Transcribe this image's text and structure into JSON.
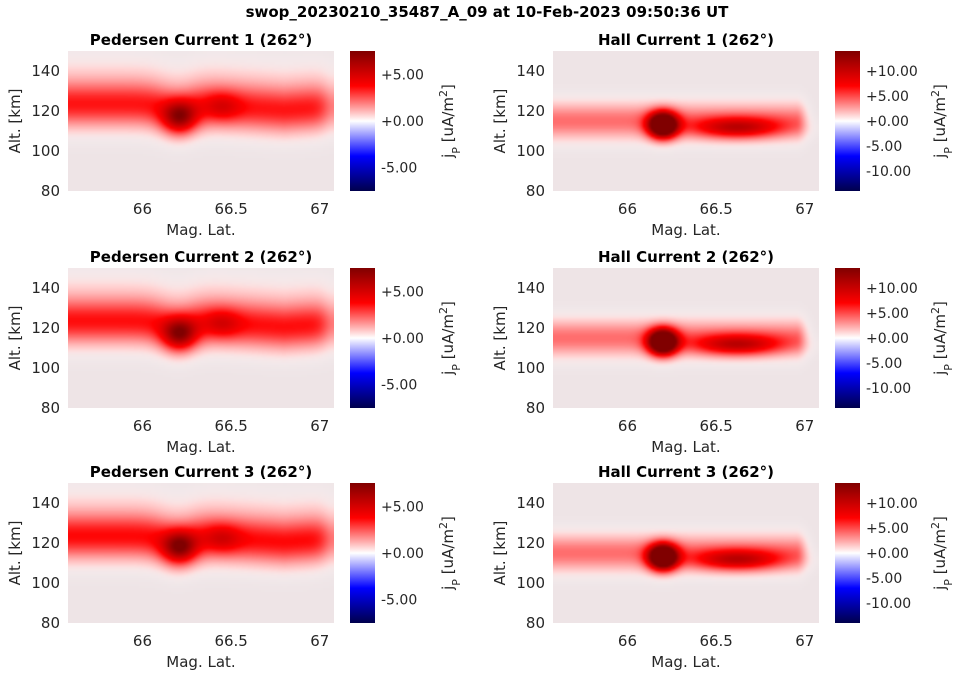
{
  "figure": {
    "title": "swop_20230210_35487_A_09 at 10-Feb-2023 09:50:36 UT"
  },
  "chart_data": [
    {
      "type": "heatmap",
      "id": "ped1",
      "title": "Pedersen Current 1 (262°)",
      "xlabel": "Mag. Lat.",
      "ylabel": "Alt. [km]",
      "xlim": [
        65.58,
        67.08
      ],
      "ylim": [
        80,
        150
      ],
      "xticks": [
        66,
        66.5,
        67
      ],
      "xticklabels": [
        "66",
        "66.5",
        "67"
      ],
      "yticks": [
        80,
        100,
        120,
        140
      ],
      "yticklabels": [
        "80",
        "100",
        "120",
        "140"
      ],
      "colorbar": {
        "label": "j_P [uA/m^2]",
        "label_main": "j",
        "label_sub": "P",
        "label_rest": " [uA/m",
        "label_sup": "2",
        "label_close": "]",
        "range": [
          -7.5,
          7.5
        ],
        "ticks": [
          5,
          0,
          -5
        ],
        "ticklabels": [
          "+5.00",
          "+0.00",
          "-5.00"
        ],
        "colormap": "seismic"
      },
      "field": {
        "kind": "pedersen",
        "peak": 7.5,
        "band_value": 3.4,
        "band_altitude_km": 123,
        "band_width_km": 7.5,
        "core_lat": 66.21,
        "core_alt_km": 117,
        "core_value": 4.5
      }
    },
    {
      "type": "heatmap",
      "id": "hall1",
      "title": "Hall Current 1 (262°)",
      "xlabel": "Mag. Lat.",
      "ylabel": "Alt. [km]",
      "xlim": [
        65.58,
        67.08
      ],
      "ylim": [
        80,
        150
      ],
      "xticks": [
        66,
        66.5,
        67
      ],
      "xticklabels": [
        "66",
        "66.5",
        "67"
      ],
      "yticks": [
        80,
        100,
        120,
        140
      ],
      "yticklabels": [
        "80",
        "100",
        "120",
        "140"
      ],
      "colorbar": {
        "label": "j_P [uA/m^2]",
        "label_main": "j",
        "label_sub": "P",
        "label_rest": " [uA/m",
        "label_sup": "2",
        "label_close": "]",
        "range": [
          -14,
          14
        ],
        "ticks": [
          10,
          5,
          0,
          -5,
          -10
        ],
        "ticklabels": [
          "+10.00",
          "+5.00",
          "+0.00",
          "-5.00",
          "-10.00"
        ],
        "colormap": "seismic"
      },
      "field": {
        "kind": "hall",
        "peak": 14,
        "band_value": 4.0,
        "band_altitude_km": 115,
        "band_width_km": 6,
        "core_lat": 66.2,
        "core_alt_km": 113,
        "core_value": 22
      }
    },
    {
      "type": "heatmap",
      "id": "ped2",
      "title": "Pedersen Current 2 (262°)",
      "xlabel": "Mag. Lat.",
      "ylabel": "Alt. [km]",
      "xlim": [
        65.58,
        67.08
      ],
      "ylim": [
        80,
        150
      ],
      "xticks": [
        66,
        66.5,
        67
      ],
      "xticklabels": [
        "66",
        "66.5",
        "67"
      ],
      "yticks": [
        80,
        100,
        120,
        140
      ],
      "yticklabels": [
        "80",
        "100",
        "120",
        "140"
      ],
      "colorbar": {
        "label": "j_P [uA/m^2]",
        "label_main": "j",
        "label_sub": "P",
        "label_rest": " [uA/m",
        "label_sup": "2",
        "label_close": "]",
        "range": [
          -7.5,
          7.5
        ],
        "ticks": [
          5,
          0,
          -5
        ],
        "ticklabels": [
          "+5.00",
          "+0.00",
          "-5.00"
        ],
        "colormap": "seismic"
      },
      "field": {
        "kind": "pedersen",
        "peak": 7.5,
        "band_value": 3.5,
        "band_altitude_km": 123,
        "band_width_km": 7.5,
        "core_lat": 66.21,
        "core_alt_km": 117,
        "core_value": 4.6
      }
    },
    {
      "type": "heatmap",
      "id": "hall2",
      "title": "Hall Current 2 (262°)",
      "xlabel": "Mag. Lat.",
      "ylabel": "Alt. [km]",
      "xlim": [
        65.58,
        67.08
      ],
      "ylim": [
        80,
        150
      ],
      "xticks": [
        66,
        66.5,
        67
      ],
      "xticklabels": [
        "66",
        "66.5",
        "67"
      ],
      "yticks": [
        80,
        100,
        120,
        140
      ],
      "yticklabels": [
        "80",
        "100",
        "120",
        "140"
      ],
      "colorbar": {
        "label": "j_P [uA/m^2]",
        "label_main": "j",
        "label_sub": "P",
        "label_rest": " [uA/m",
        "label_sup": "2",
        "label_close": "]",
        "range": [
          -14,
          14
        ],
        "ticks": [
          10,
          5,
          0,
          -5,
          -10
        ],
        "ticklabels": [
          "+10.00",
          "+5.00",
          "+0.00",
          "-5.00",
          "-10.00"
        ],
        "colormap": "seismic"
      },
      "field": {
        "kind": "hall",
        "peak": 14,
        "band_value": 4.0,
        "band_altitude_km": 115,
        "band_width_km": 6,
        "core_lat": 66.2,
        "core_alt_km": 113,
        "core_value": 22
      }
    },
    {
      "type": "heatmap",
      "id": "ped3",
      "title": "Pedersen Current 3 (262°)",
      "xlabel": "Mag. Lat.",
      "ylabel": "Alt. [km]",
      "xlim": [
        65.58,
        67.08
      ],
      "ylim": [
        80,
        150
      ],
      "xticks": [
        66,
        66.5,
        67
      ],
      "xticklabels": [
        "66",
        "66.5",
        "67"
      ],
      "yticks": [
        80,
        100,
        120,
        140
      ],
      "yticklabels": [
        "80",
        "100",
        "120",
        "140"
      ],
      "colorbar": {
        "label": "j_P [uA/m^2]",
        "label_main": "j",
        "label_sub": "P",
        "label_rest": " [uA/m",
        "label_sup": "2",
        "label_close": "]",
        "range": [
          -7.5,
          7.5
        ],
        "ticks": [
          5,
          0,
          -5
        ],
        "ticklabels": [
          "+5.00",
          "+0.00",
          "-5.00"
        ],
        "colormap": "seismic"
      },
      "field": {
        "kind": "pedersen",
        "peak": 7.5,
        "band_value": 3.6,
        "band_altitude_km": 123,
        "band_width_km": 7.5,
        "core_lat": 66.21,
        "core_alt_km": 118,
        "core_value": 4.6
      }
    },
    {
      "type": "heatmap",
      "id": "hall3",
      "title": "Hall Current 3 (262°)",
      "xlabel": "Mag. Lat.",
      "ylabel": "Alt. [km]",
      "xlim": [
        65.58,
        67.08
      ],
      "ylim": [
        80,
        150
      ],
      "xticks": [
        66,
        66.5,
        67
      ],
      "xticklabels": [
        "66",
        "66.5",
        "67"
      ],
      "yticks": [
        80,
        100,
        120,
        140
      ],
      "yticklabels": [
        "80",
        "100",
        "120",
        "140"
      ],
      "colorbar": {
        "label": "j_P [uA/m^2]",
        "label_main": "j",
        "label_sub": "P",
        "label_rest": " [uA/m",
        "label_sup": "2",
        "label_close": "]",
        "range": [
          -14,
          14
        ],
        "ticks": [
          10,
          5,
          0,
          -5,
          -10
        ],
        "ticklabels": [
          "+10.00",
          "+5.00",
          "+0.00",
          "-5.00",
          "-10.00"
        ],
        "colormap": "seismic"
      },
      "field": {
        "kind": "hall",
        "peak": 14,
        "band_value": 4.0,
        "band_altitude_km": 115,
        "band_width_km": 6,
        "core_lat": 66.2,
        "core_alt_km": 113,
        "core_value": 22
      }
    }
  ]
}
